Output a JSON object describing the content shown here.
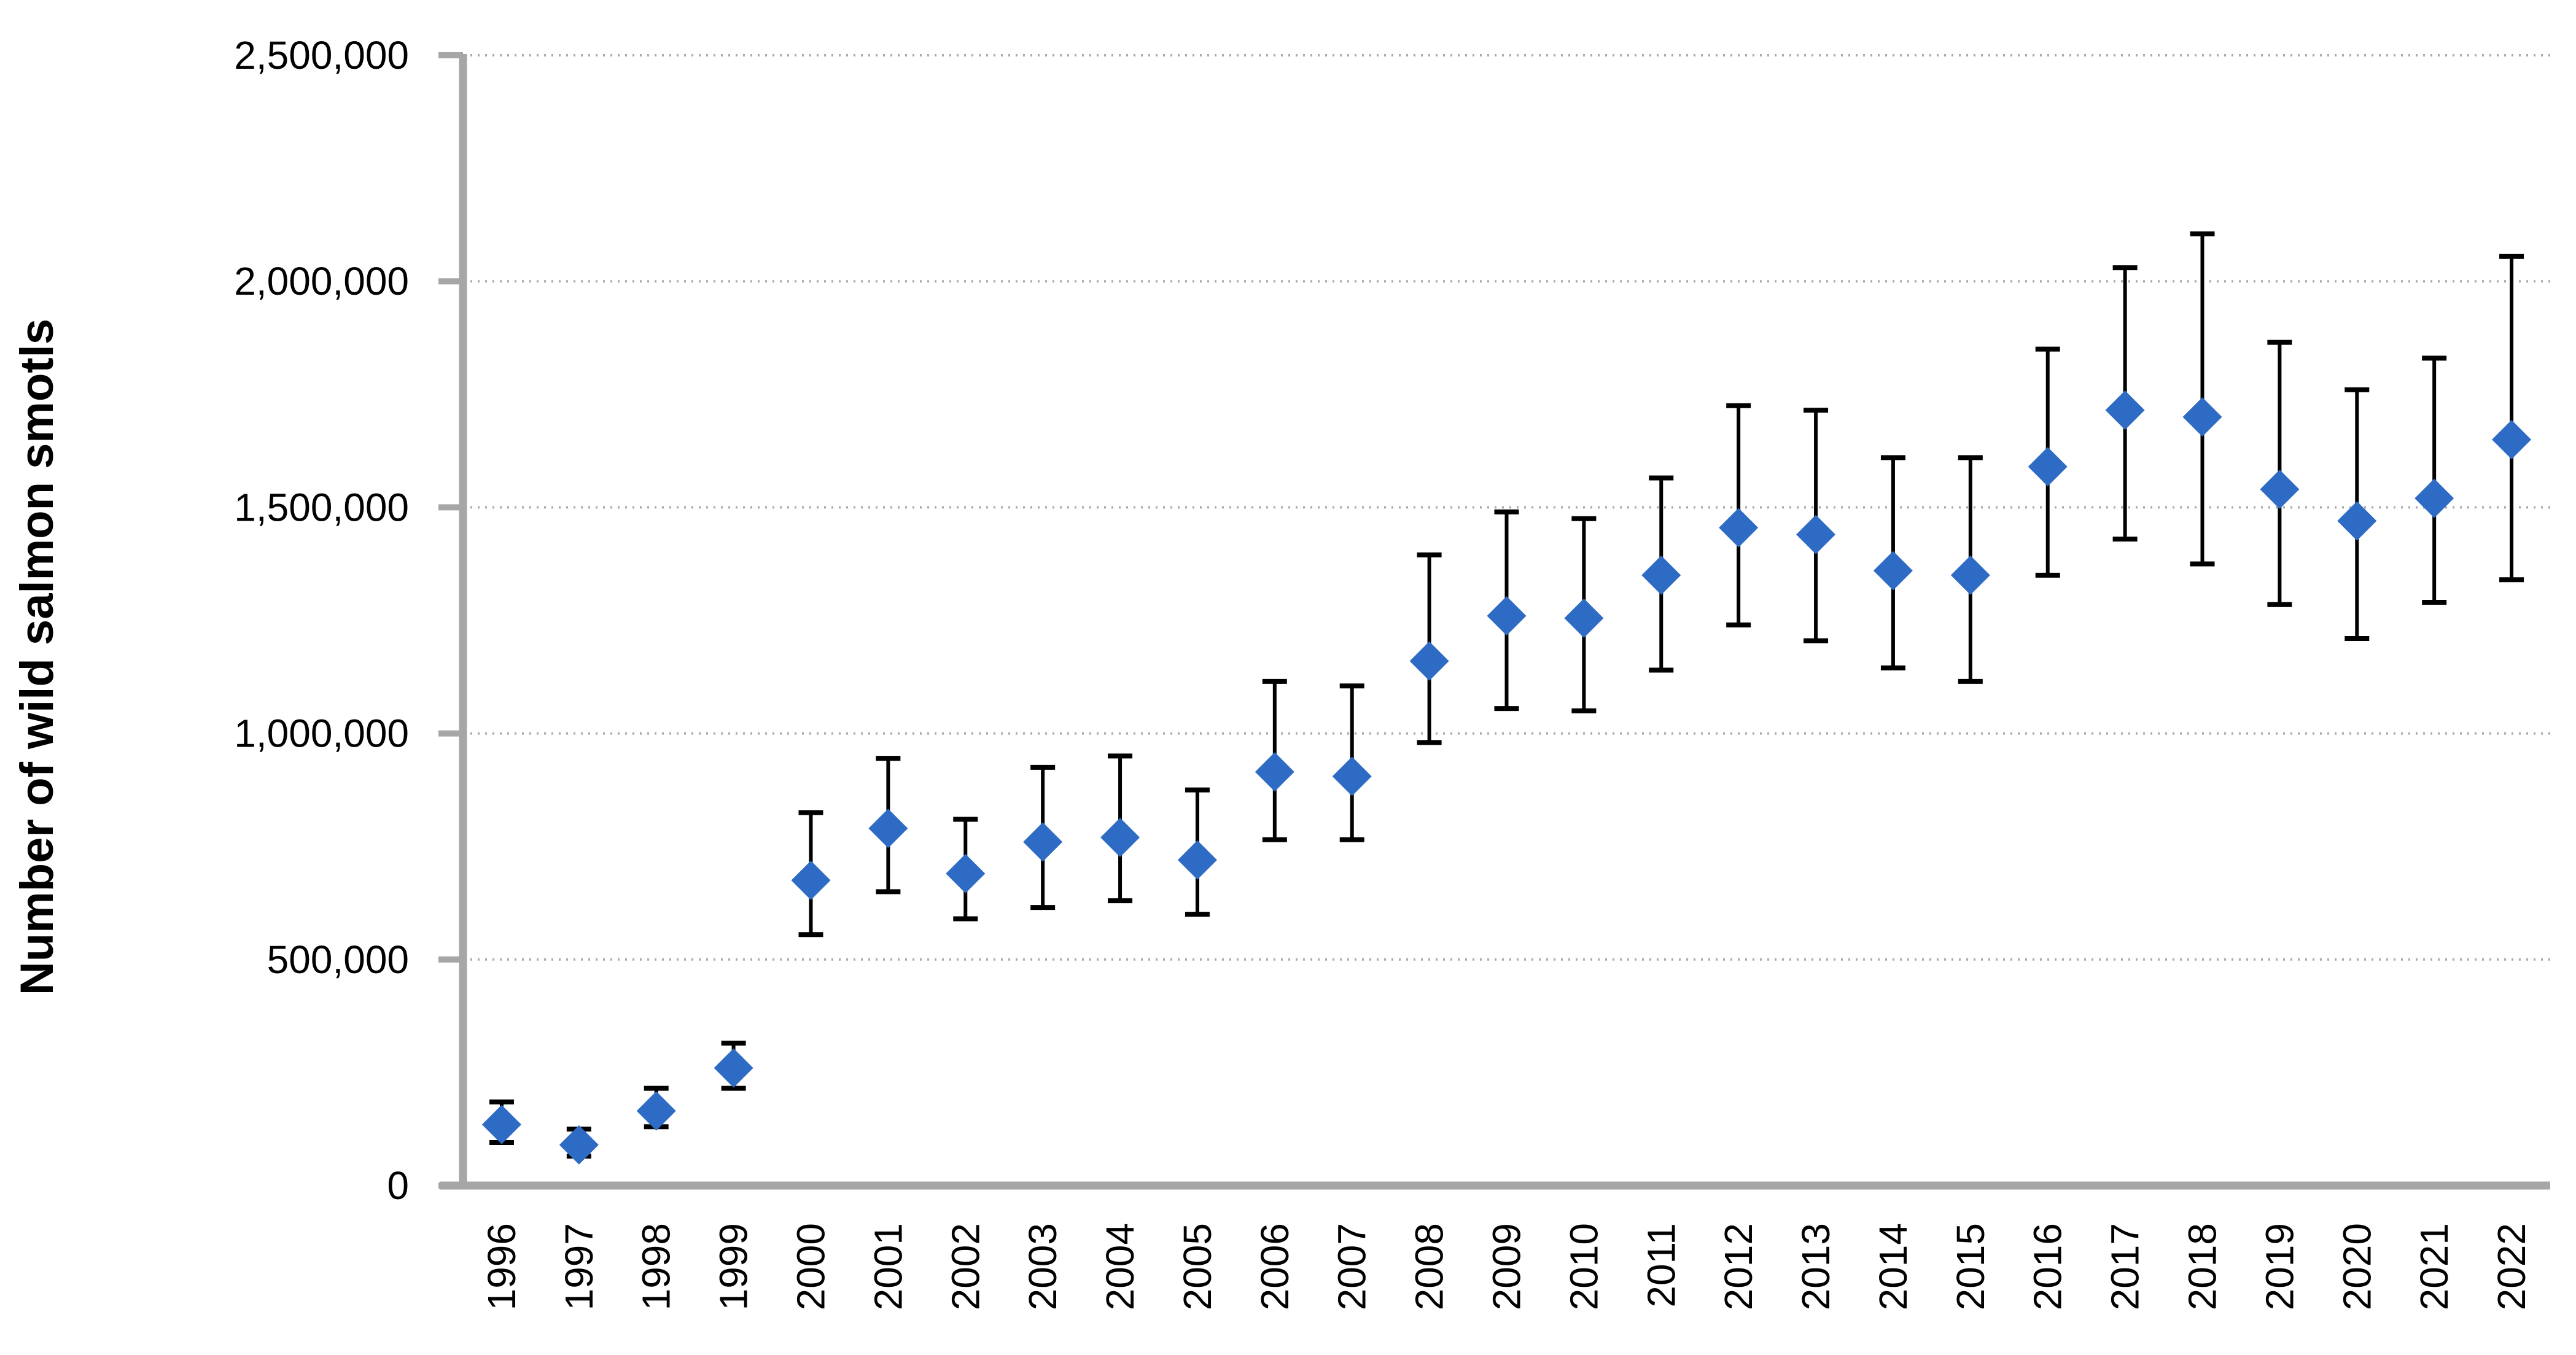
{
  "chart_data": {
    "type": "scatter",
    "title": "",
    "xlabel": "",
    "ylabel": "Number of wild salmon smotls",
    "ylim": [
      0,
      2500000
    ],
    "ytick_interval": 500000,
    "ytick_labels": [
      "0",
      "500,000",
      "1,000,000",
      "1,500,000",
      "2,000,000",
      "2,500,000"
    ],
    "grid": "horizontal dotted gridlines at every y tick",
    "legend_position": "none",
    "x_axis_label_rotation": "90 degrees counterclockwise (reads bottom to top)",
    "marker": {
      "shape": "diamond",
      "color": "#2E6BC4"
    },
    "error_bars": {
      "style": "vertical line with end caps",
      "color": "#000000"
    },
    "categories": [
      "1996",
      "1997",
      "1998",
      "1999",
      "2000",
      "2001",
      "2002",
      "2003",
      "2004",
      "2005",
      "2006",
      "2007",
      "2008",
      "2009",
      "2010",
      "2011",
      "2012",
      "2013",
      "2014",
      "2015",
      "2016",
      "2017",
      "2018",
      "2019",
      "2020",
      "2021",
      "2022"
    ],
    "series": [
      {
        "values": [
          135000,
          90000,
          165000,
          260000,
          675000,
          790000,
          690000,
          760000,
          770000,
          720000,
          915000,
          905000,
          1160000,
          1260000,
          1255000,
          1350000,
          1455000,
          1440000,
          1360000,
          1350000,
          1590000,
          1715000,
          1700000,
          1540000,
          1470000,
          1520000,
          1650000
        ],
        "error_low": [
          95000,
          65000,
          130000,
          215000,
          555000,
          650000,
          590000,
          615000,
          630000,
          600000,
          765000,
          765000,
          980000,
          1055000,
          1050000,
          1140000,
          1240000,
          1205000,
          1145000,
          1115000,
          1350000,
          1430000,
          1375000,
          1285000,
          1210000,
          1290000,
          1340000
        ],
        "error_high": [
          185000,
          125000,
          215000,
          315000,
          825000,
          945000,
          810000,
          925000,
          950000,
          875000,
          1115000,
          1105000,
          1395000,
          1490000,
          1475000,
          1565000,
          1725000,
          1715000,
          1610000,
          1610000,
          1850000,
          2030000,
          2105000,
          1865000,
          1760000,
          1830000,
          2055000
        ]
      }
    ],
    "style": {
      "axis_color": "#A6A6A6",
      "gridline_color": "#ABABAB",
      "text_color": "#000000",
      "background": "#FFFFFF"
    }
  }
}
